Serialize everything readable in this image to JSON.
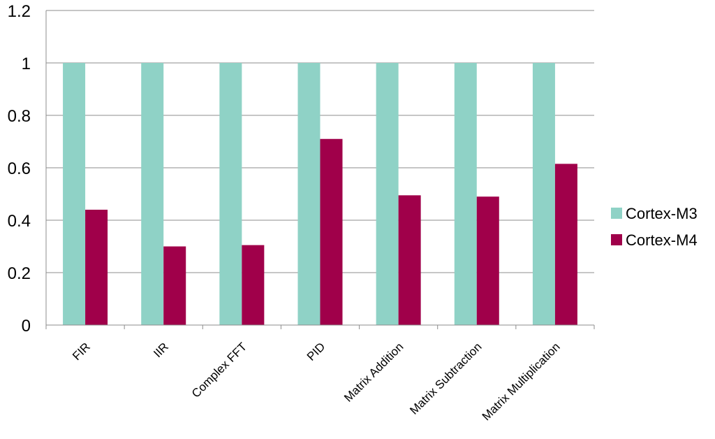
{
  "chart_data": {
    "type": "bar",
    "title": "",
    "xlabel": "",
    "ylabel": "",
    "categories": [
      "FIR",
      "IIR",
      "Complex FFT",
      "PID",
      "Matrix Addition",
      "Matrix Subtraction",
      "Matrix Multiplication"
    ],
    "series": [
      {
        "name": "Cortex-M3",
        "color": "#8fd2c6",
        "values": [
          1,
          1,
          1,
          1,
          1,
          1,
          1
        ]
      },
      {
        "name": "Cortex-M4",
        "color": "#a0004a",
        "values": [
          0.44,
          0.3,
          0.305,
          0.71,
          0.495,
          0.49,
          0.615
        ]
      }
    ],
    "ylim": [
      0,
      1.2
    ],
    "yticks": [
      "0",
      "0.2",
      "0.4",
      "0.6",
      "0.8",
      "1",
      "1.2"
    ],
    "grid": true,
    "legend_position": "right"
  }
}
